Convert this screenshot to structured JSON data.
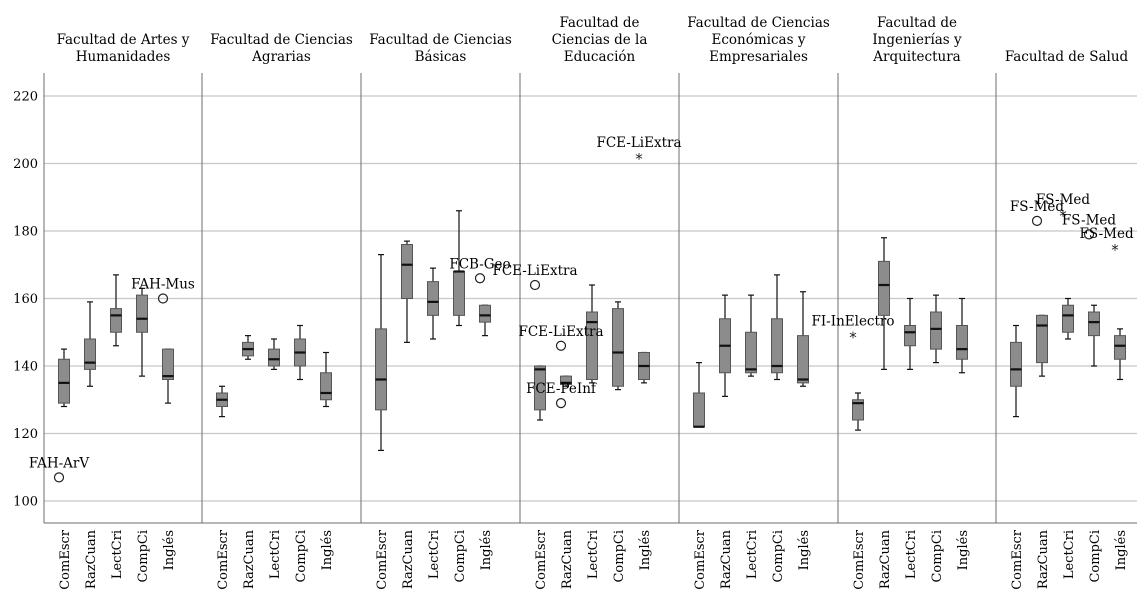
{
  "chart_data": {
    "type": "boxplot",
    "ylim": [
      97,
      226
    ],
    "yticks": [
      100,
      120,
      140,
      160,
      180,
      200,
      220
    ],
    "grid": true,
    "categories": [
      "ComEscr",
      "RazCuan",
      "LectCri",
      "CompCi",
      "Inglés"
    ],
    "facets": [
      {
        "title": [
          "Facultad de Artes y",
          "Humanidades"
        ],
        "boxes": [
          {
            "category": "ComEscr",
            "min": 128,
            "q1": 129,
            "median": 135,
            "q3": 142,
            "max": 145
          },
          {
            "category": "RazCuan",
            "min": 134,
            "q1": 139,
            "median": 141,
            "q3": 148,
            "max": 159
          },
          {
            "category": "LectCri",
            "min": 146,
            "q1": 150,
            "median": 155,
            "q3": 157,
            "max": 167
          },
          {
            "category": "CompCi",
            "min": 137,
            "q1": 150,
            "median": 154,
            "q3": 161,
            "max": 163
          },
          {
            "category": "Inglés",
            "min": 129,
            "q1": 136,
            "median": 137,
            "q3": 145,
            "max": 145
          }
        ],
        "outliers": [
          {
            "category": "ComEscr",
            "value": 107,
            "marker": "circle",
            "label": "FAH-ArV"
          },
          {
            "category": "Inglés",
            "value": 160,
            "marker": "circle",
            "label": "FAH-Mus"
          }
        ]
      },
      {
        "title": [
          "Facultad de Ciencias",
          "Agrarias"
        ],
        "boxes": [
          {
            "category": "ComEscr",
            "min": 125,
            "q1": 128,
            "median": 130,
            "q3": 132,
            "max": 134
          },
          {
            "category": "RazCuan",
            "min": 142,
            "q1": 143,
            "median": 145,
            "q3": 147,
            "max": 149
          },
          {
            "category": "LectCri",
            "min": 139,
            "q1": 140,
            "median": 142,
            "q3": 145,
            "max": 148
          },
          {
            "category": "CompCi",
            "min": 136,
            "q1": 140,
            "median": 144,
            "q3": 148,
            "max": 152
          },
          {
            "category": "Inglés",
            "min": 128,
            "q1": 130,
            "median": 132,
            "q3": 138,
            "max": 144
          }
        ],
        "outliers": []
      },
      {
        "title": [
          "Facultad de Ciencias",
          "Básicas"
        ],
        "boxes": [
          {
            "category": "ComEscr",
            "min": 115,
            "q1": 127,
            "median": 136,
            "q3": 151,
            "max": 173
          },
          {
            "category": "RazCuan",
            "min": 147,
            "q1": 160,
            "median": 170,
            "q3": 176,
            "max": 177
          },
          {
            "category": "LectCri",
            "min": 148,
            "q1": 155,
            "median": 159,
            "q3": 165,
            "max": 169
          },
          {
            "category": "CompCi",
            "min": 152,
            "q1": 155,
            "median": 168,
            "q3": 168,
            "max": 186
          },
          {
            "category": "Inglés",
            "min": 149,
            "q1": 153,
            "median": 155,
            "q3": 158,
            "max": 158
          }
        ],
        "outliers": [
          {
            "category": "Inglés",
            "value": 166,
            "marker": "circle",
            "label": "FCB-Geo"
          }
        ]
      },
      {
        "title": [
          "Facultad de",
          "Ciencias de la",
          "Educación"
        ],
        "boxes": [
          {
            "category": "ComEscr",
            "min": 124,
            "q1": 127,
            "median": 139,
            "q3": 140,
            "max": 140
          },
          {
            "category": "RazCuan",
            "min": 134,
            "q1": 134.5,
            "median": 135,
            "q3": 137,
            "max": 137
          },
          {
            "category": "LectCri",
            "min": 135,
            "q1": 136,
            "median": 153,
            "q3": 156,
            "max": 164
          },
          {
            "category": "CompCi",
            "min": 133,
            "q1": 134,
            "median": 144,
            "q3": 157,
            "max": 159
          },
          {
            "category": "Inglés",
            "min": 135,
            "q1": 136,
            "median": 140,
            "q3": 144,
            "max": 144
          }
        ],
        "outliers": [
          {
            "category": "ComEscr",
            "value": 164,
            "marker": "circle",
            "label": "FCE-LiExtra"
          },
          {
            "category": "RazCuan",
            "value": 146,
            "marker": "circle",
            "label": "FCE-LiExtra"
          },
          {
            "category": "RazCuan",
            "value": 129,
            "marker": "circle",
            "label": "FCE-PeInf"
          },
          {
            "category": "Inglés",
            "value": 202,
            "marker": "star",
            "label": "FCE-LiExtra"
          }
        ]
      },
      {
        "title": [
          "Facultad de Ciencias",
          "Económicas y",
          "Empresariales"
        ],
        "boxes": [
          {
            "category": "ComEscr",
            "min": 122,
            "q1": 122,
            "median": 122,
            "q3": 132,
            "max": 141
          },
          {
            "category": "RazCuan",
            "min": 131,
            "q1": 138,
            "median": 146,
            "q3": 154,
            "max": 161
          },
          {
            "category": "LectCri",
            "min": 137,
            "q1": 138,
            "median": 139,
            "q3": 150,
            "max": 161
          },
          {
            "category": "CompCi",
            "min": 136,
            "q1": 138,
            "median": 140,
            "q3": 154,
            "max": 167
          },
          {
            "category": "Inglés",
            "min": 134,
            "q1": 135,
            "median": 136,
            "q3": 149,
            "max": 162
          }
        ],
        "outliers": []
      },
      {
        "title": [
          "Facultad de",
          "Ingenierías y",
          "Arquitectura"
        ],
        "boxes": [
          {
            "category": "ComEscr",
            "min": 121,
            "q1": 124,
            "median": 129,
            "q3": 130,
            "max": 132
          },
          {
            "category": "RazCuan",
            "min": 139,
            "q1": 155,
            "median": 164,
            "q3": 171,
            "max": 178
          },
          {
            "category": "LectCri",
            "min": 139,
            "q1": 146,
            "median": 150,
            "q3": 152,
            "max": 160
          },
          {
            "category": "CompCi",
            "min": 141,
            "q1": 145,
            "median": 151,
            "q3": 156,
            "max": 161
          },
          {
            "category": "Inglés",
            "min": 138,
            "q1": 142,
            "median": 145,
            "q3": 152,
            "max": 160
          }
        ],
        "outliers": [
          {
            "category": "ComEscr",
            "value": 149,
            "marker": "star",
            "label": "FI-InElectro"
          }
        ]
      },
      {
        "title": [
          "Facultad de Salud"
        ],
        "boxes": [
          {
            "category": "ComEscr",
            "min": 125,
            "q1": 134,
            "median": 139,
            "q3": 147,
            "max": 152
          },
          {
            "category": "RazCuan",
            "min": 137,
            "q1": 141,
            "median": 152,
            "q3": 155,
            "max": 155
          },
          {
            "category": "LectCri",
            "min": 148,
            "q1": 150,
            "median": 155,
            "q3": 158,
            "max": 160
          },
          {
            "category": "CompCi",
            "min": 140,
            "q1": 149,
            "median": 153,
            "q3": 156,
            "max": 158
          },
          {
            "category": "Inglés",
            "min": 136,
            "q1": 142,
            "median": 146,
            "q3": 149,
            "max": 151
          }
        ],
        "outliers": [
          {
            "category": "RazCuan",
            "value": 183,
            "marker": "circle",
            "label": "FS-Med"
          },
          {
            "category": "LectCri",
            "value": 185,
            "marker": "star",
            "label": "FS-Med"
          },
          {
            "category": "CompCi",
            "value": 179,
            "marker": "circle",
            "label": "FS-Med"
          },
          {
            "category": "Inglés",
            "value": 175,
            "marker": "star",
            "label": "FS-Med"
          }
        ]
      }
    ]
  }
}
